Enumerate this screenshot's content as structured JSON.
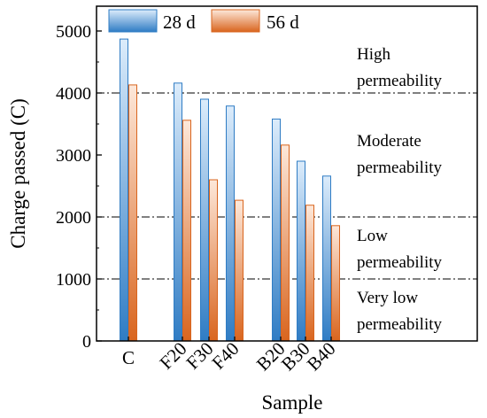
{
  "chart_data": {
    "type": "bar",
    "xlabel": "Sample",
    "ylabel": "Charge passed (C)",
    "ylim": [
      0,
      5400
    ],
    "yticks": [
      0,
      1000,
      2000,
      3000,
      4000,
      5000
    ],
    "categories": [
      "C",
      "F20",
      "F30",
      "F40",
      "B20",
      "B30",
      "B40"
    ],
    "series": [
      {
        "name": "28 d",
        "values": [
          4870,
          4160,
          3900,
          3790,
          3580,
          2900,
          2660
        ],
        "color_light": "#dcecfb",
        "color_dark": "#2f7cc4"
      },
      {
        "name": "56 d",
        "values": [
          4130,
          3560,
          2600,
          2270,
          3160,
          2190,
          1860
        ],
        "color_light": "#fde8da",
        "color_dark": "#d9651e"
      }
    ],
    "legend_position": "top-left",
    "thresholds": [
      4000,
      2000,
      1000
    ],
    "zones": [
      {
        "line1": "High",
        "line2": "permeability"
      },
      {
        "line1": "Moderate",
        "line2": "permeability"
      },
      {
        "line1": "Low",
        "line2": "permeability"
      },
      {
        "line1": "Very low",
        "line2": "permeability"
      }
    ]
  }
}
